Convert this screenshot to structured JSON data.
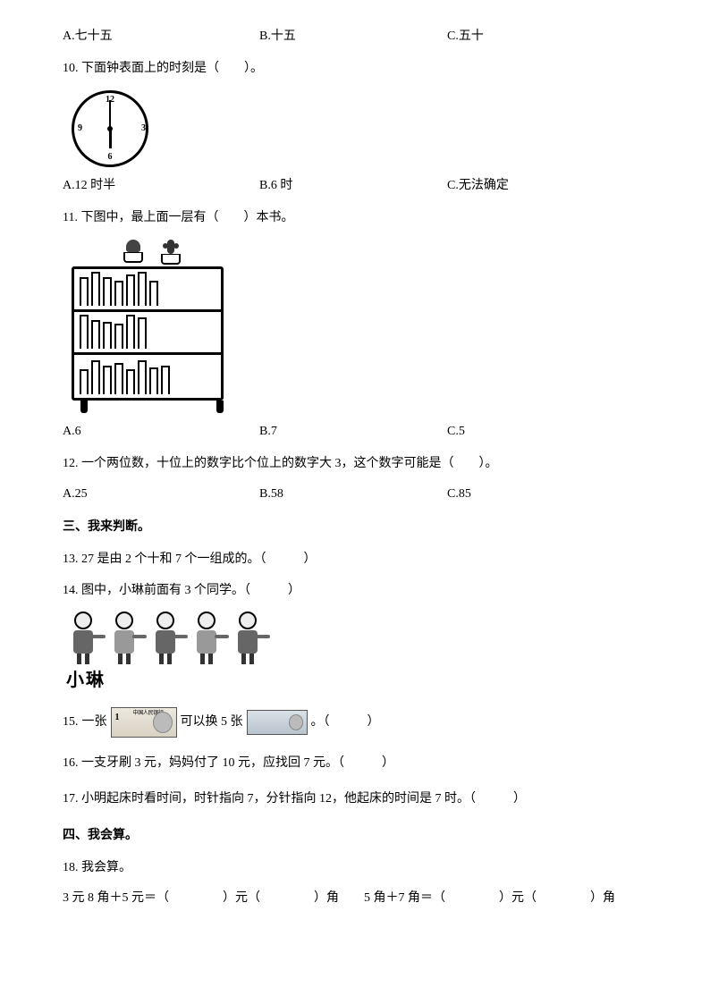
{
  "q9": {
    "optA_prefix": "A. ",
    "optA": "七十五",
    "optB_prefix": "B. ",
    "optB": "十五",
    "optC_prefix": "C. ",
    "optC": "五十"
  },
  "q10": {
    "num": "10. ",
    "text": "下面钟表面上的时刻是（　　）。",
    "clock": {
      "hour_hand_rotation_deg": 180,
      "minute_hand_rotation_deg": 0
    },
    "optA_prefix": "A. ",
    "optA": "12 时半",
    "optB_prefix": "B. ",
    "optB": "6 时",
    "optC_prefix": "C. ",
    "optC": "无法确定"
  },
  "q11": {
    "num": "11. ",
    "text": "下图中，最上面一层有（　　）本书。",
    "shelf_rows_book_heights": [
      [
        "bh1",
        "bh2",
        "bh1",
        "bh3",
        "bh4",
        "bh2",
        "bh3"
      ],
      [
        "bh2",
        "bh1",
        "bh5",
        "bh3",
        "bh2",
        "bh4"
      ],
      [
        "bh3",
        "bh2",
        "bh1",
        "bh4",
        "bh3",
        "bh2",
        "bh5",
        "bh1"
      ]
    ],
    "optA_prefix": "A. ",
    "optA": "6",
    "optB_prefix": "B. ",
    "optB": "7",
    "optC_prefix": "C. ",
    "optC": "5"
  },
  "q12": {
    "num": "12. ",
    "text": "一个两位数，十位上的数字比个位上的数字大 3，这个数字可能是（　　）。",
    "optA_prefix": "A. ",
    "optA": "25",
    "optB_prefix": "B. ",
    "optB": "58",
    "optC_prefix": "C. ",
    "optC": "85"
  },
  "section3": "三、我来判断。",
  "q13": {
    "num": "13. ",
    "text": "27 是由 2 个十和 7 个一组成的。（　　　）"
  },
  "q14": {
    "num": "14. ",
    "text": "图中，小琳前面有 3 个同学。（　　　）",
    "label": "小琳",
    "kids_count": 5
  },
  "q15": {
    "num": "15. ",
    "pre": "一张",
    "mid": "可以换 5 张",
    "post": "。（　　　）",
    "bill1": {
      "denom": "1",
      "text": "中国人民银行"
    },
    "bill2": {
      "denom": "",
      "text": ""
    }
  },
  "q16": {
    "num": "16. ",
    "text": "一支牙刷 3 元，妈妈付了 10 元，应找回 7 元。（　　　）"
  },
  "q17": {
    "num": "17. ",
    "text": "小明起床时看时间，时针指向 7，分针指向 12，他起床的时间是 7 时。（　　　）"
  },
  "section4": "四、我会算。",
  "q18": {
    "num": "18. ",
    "text": "我会算。",
    "line1_a": "3 元 8 角＋5 元＝（",
    "line1_b": "）元（",
    "line1_c": "）角",
    "line1_d": "5 角＋7 角＝（",
    "line1_e": "）元（",
    "line1_f": "）角"
  },
  "colors": {
    "text": "#000000",
    "bg": "#ffffff"
  }
}
